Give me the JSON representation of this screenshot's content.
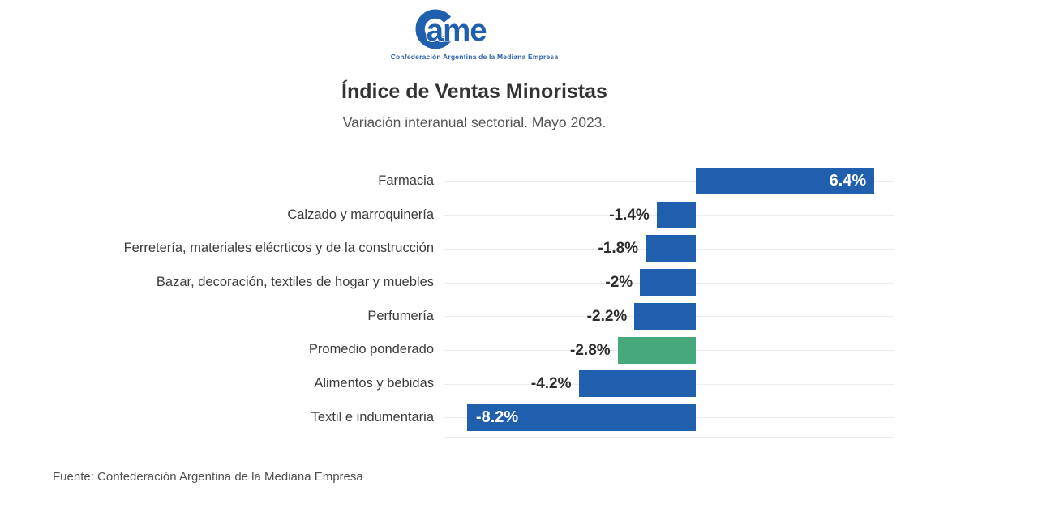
{
  "logo": {
    "name": "Came",
    "wordmark_rest": "ame",
    "tagline": "Confederación Argentina de la Mediana Empresa",
    "brand_color": "#1f5fad"
  },
  "header": {
    "title": "Índice de Ventas Minoristas",
    "subtitle": "Variación interanual sectorial. Mayo 2023."
  },
  "footer": {
    "source": "Fuente: Confederación Argentina de la Mediana Empresa"
  },
  "chart_data": {
    "type": "bar",
    "orientation": "horizontal",
    "title": "Índice de Ventas Minoristas",
    "subtitle": "Variación interanual sectorial. Mayo 2023.",
    "unit": "%",
    "xlim": [
      -9,
      7.1
    ],
    "grid": true,
    "legend": "none",
    "categories": [
      "Farmacia",
      "Calzado y marroquinería",
      "Ferretería, materiales elécrticos y de la construcción",
      "Bazar, decoración, textiles de hogar y muebles",
      "Perfumería",
      "Promedio ponderado",
      "Alimentos y bebidas",
      "Textil e indumentaria"
    ],
    "values": [
      6.4,
      -1.4,
      -1.8,
      -2,
      -2.2,
      -2.8,
      -4.2,
      -8.2
    ],
    "value_labels": [
      "6.4%",
      "-1.4%",
      "-1.8%",
      "-2%",
      "-2.2%",
      "-2.8%",
      "-4.2%",
      "-8.2%"
    ],
    "bar_colors": [
      "#1f5fad",
      "#1f5fad",
      "#1f5fad",
      "#1f5fad",
      "#1f5fad",
      "#46a97b",
      "#1f5fad",
      "#1f5fad"
    ],
    "value_label_positions": [
      "inside-right",
      "outside-left",
      "outside-left",
      "outside-left",
      "outside-left",
      "outside-left",
      "outside-left",
      "inside-left"
    ],
    "bar_color_default": "#1f5fad",
    "highlight_color": "#46a97b",
    "gridline_color": "#ebebeb",
    "axis_line_color": "#d9d9d9"
  }
}
